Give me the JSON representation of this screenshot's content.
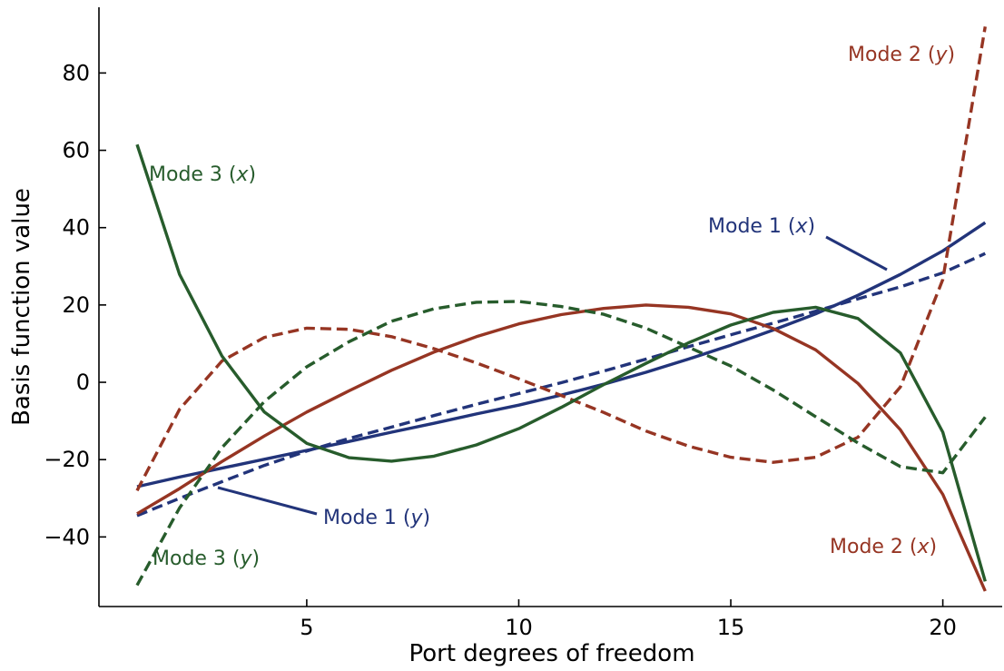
{
  "chart_data": {
    "type": "line",
    "xlabel": "Port degrees of freedom",
    "ylabel": "Basis function value",
    "xlim": [
      0.1,
      21.4
    ],
    "ylim": [
      -58,
      97
    ],
    "xticks": [
      5,
      10,
      15,
      20
    ],
    "yticks": [
      -40,
      -20,
      0,
      20,
      40,
      60,
      80
    ],
    "ytick_labels": [
      "−40",
      "−20",
      "0",
      "20",
      "40",
      "60",
      "80"
    ],
    "grid": false,
    "legend": "none",
    "x": [
      1,
      2,
      3,
      4,
      5,
      6,
      7,
      8,
      9,
      10,
      11,
      12,
      13,
      14,
      15,
      16,
      17,
      18,
      19,
      20,
      21
    ],
    "series": [
      {
        "name": "Mode 1 (x)",
        "color": "#22347a",
        "dash": "solid",
        "values": [
          -27,
          -24.5,
          -22.2,
          -19.9,
          -17.6,
          -15.3,
          -12.9,
          -10.6,
          -8.2,
          -5.9,
          -3.3,
          -0.5,
          2.6,
          6.0,
          9.6,
          13.5,
          17.7,
          22.5,
          27.9,
          34.0,
          41.3
        ]
      },
      {
        "name": "Mode 1 (y)",
        "color": "#22347a",
        "dash": "dashed",
        "values": [
          -34.5,
          -30.0,
          -25.7,
          -21.5,
          -17.8,
          -14.5,
          -11.6,
          -8.6,
          -5.7,
          -2.9,
          -0.1,
          2.9,
          6.0,
          9.2,
          12.3,
          15.3,
          18.4,
          21.6,
          24.7,
          28.3,
          33.3
        ]
      },
      {
        "name": "Mode 2 (x)",
        "color": "#963523",
        "dash": "solid",
        "values": [
          -34,
          -27.5,
          -20.5,
          -13.9,
          -7.7,
          -2.2,
          3.1,
          7.8,
          11.8,
          15.1,
          17.5,
          19.1,
          20.0,
          19.4,
          17.7,
          13.9,
          8.4,
          -0.3,
          -12.3,
          -29.0,
          -54.0
        ]
      },
      {
        "name": "Mode 2 (y)",
        "color": "#963523",
        "dash": "dashed",
        "values": [
          -28,
          -7,
          5.5,
          11.6,
          14.0,
          13.7,
          11.8,
          8.7,
          5.0,
          0.9,
          -3.4,
          -7.8,
          -12.6,
          -16.5,
          -19.4,
          -20.7,
          -19.4,
          -14.2,
          -1.2,
          26.6,
          92.0
        ]
      },
      {
        "name": "Mode 3 (x)",
        "color": "#275c2c",
        "dash": "solid",
        "values": [
          61.5,
          27.9,
          6.8,
          -7.7,
          -15.8,
          -19.5,
          -20.4,
          -19.1,
          -16.2,
          -12.0,
          -6.5,
          -0.6,
          4.9,
          10.2,
          14.8,
          18.1,
          19.4,
          16.5,
          7.6,
          -12.9,
          -51.5
        ]
      },
      {
        "name": "Mode 3 (y)",
        "color": "#275c2c",
        "dash": "dashed",
        "values": [
          -52.5,
          -32.5,
          -16.9,
          -5.0,
          4.0,
          10.5,
          15.8,
          19.0,
          20.7,
          20.9,
          19.6,
          17.6,
          14.0,
          9.1,
          4.2,
          -2.0,
          -8.9,
          -15.7,
          -21.8,
          -23.4,
          -9.0
        ]
      }
    ],
    "annotations": [
      {
        "label": "Mode 1 (",
        "var": "x",
        "tail": ")",
        "color": "#22347a"
      },
      {
        "label": "Mode 1 (",
        "var": "y",
        "tail": ")",
        "color": "#22347a"
      },
      {
        "label": "Mode 2 (",
        "var": "y",
        "tail": ")",
        "color": "#963523"
      },
      {
        "label": "Mode 2 (",
        "var": "x",
        "tail": ")",
        "color": "#963523"
      },
      {
        "label": "Mode 3 (",
        "var": "x",
        "tail": ")",
        "color": "#275c2c"
      },
      {
        "label": "Mode 3 (",
        "var": "y",
        "tail": ")",
        "color": "#275c2c"
      }
    ]
  }
}
